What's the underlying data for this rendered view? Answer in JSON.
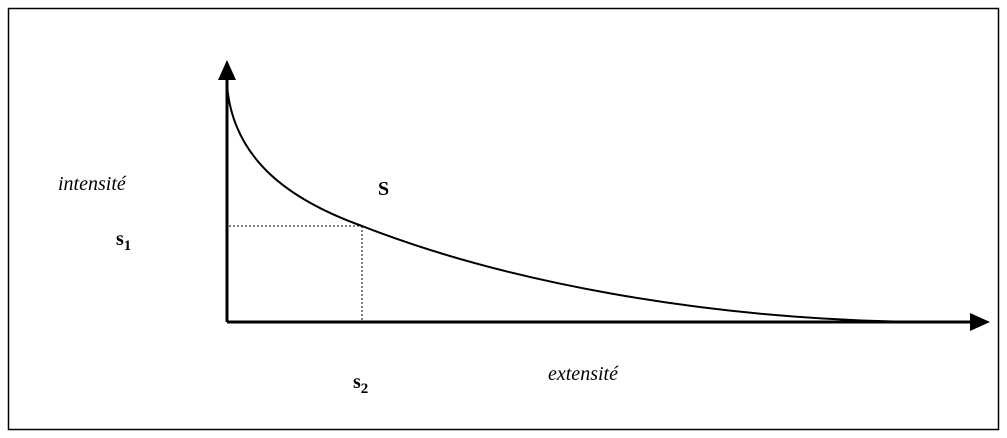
{
  "labels": {
    "y_axis": "intensité",
    "curve": "S",
    "s1": {
      "base": "s",
      "sub": "1"
    },
    "s2": {
      "base": "s",
      "sub": "2"
    },
    "x_axis": "extensité"
  }
}
